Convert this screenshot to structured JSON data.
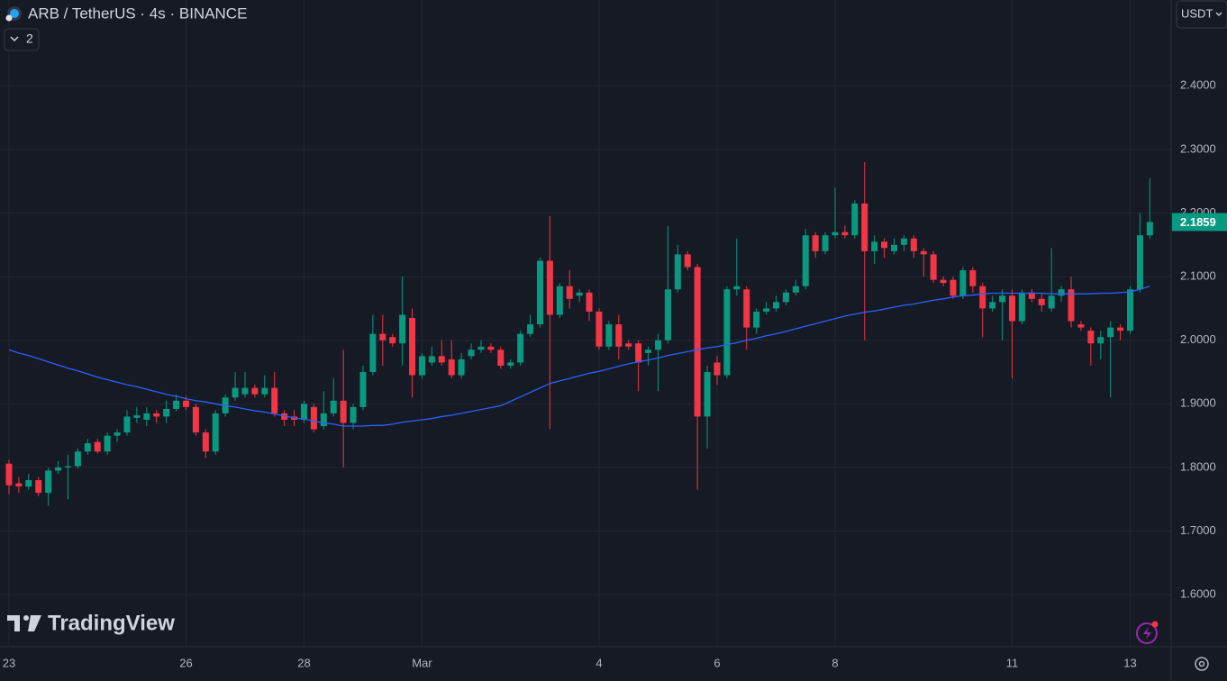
{
  "chart_data": {
    "type": "candlestick",
    "title": "ARB / TetherUS · 4s · BINANCE",
    "indicator_count": "2",
    "currency": "USDT",
    "brand": "TradingView",
    "up_color": "#089981",
    "down_color": "#f23645",
    "grid": true,
    "ylim": [
      1.518,
      2.535
    ],
    "yticks": [
      {
        "value": 1.6,
        "label": "1.6000"
      },
      {
        "value": 1.7,
        "label": "1.7000"
      },
      {
        "value": 1.8,
        "label": "1.8000"
      },
      {
        "value": 1.9,
        "label": "1.9000"
      },
      {
        "value": 2.0,
        "label": "2.0000"
      },
      {
        "value": 2.1,
        "label": "2.1000"
      },
      {
        "value": 2.2,
        "label": "2.2000"
      },
      {
        "value": 2.3,
        "label": "2.3000"
      },
      {
        "value": 2.4,
        "label": "2.4000"
      }
    ],
    "categories": [
      "23",
      null,
      null,
      null,
      null,
      null,
      null,
      null,
      null,
      null,
      null,
      null,
      null,
      null,
      null,
      null,
      null,
      null,
      "26",
      null,
      null,
      null,
      null,
      null,
      null,
      null,
      null,
      null,
      null,
      null,
      "28",
      null,
      null,
      null,
      null,
      null,
      null,
      null,
      null,
      null,
      null,
      null,
      "Mar",
      null,
      null,
      null,
      null,
      null,
      null,
      null,
      null,
      null,
      null,
      null,
      null,
      null,
      null,
      null,
      null,
      null,
      "4",
      null,
      null,
      null,
      null,
      null,
      null,
      null,
      null,
      null,
      null,
      null,
      "6",
      null,
      null,
      null,
      null,
      null,
      null,
      null,
      null,
      null,
      null,
      null,
      "8",
      null,
      null,
      null,
      null,
      null,
      null,
      null,
      null,
      null,
      null,
      null,
      null,
      null,
      null,
      null,
      null,
      null,
      "11",
      null,
      null,
      null,
      null,
      null,
      null,
      null,
      null,
      null,
      null,
      null,
      "13",
      null,
      null
    ],
    "open": [
      1.806,
      1.775,
      1.77,
      1.78,
      1.76,
      1.795,
      1.8,
      1.802,
      1.825,
      1.84,
      1.825,
      1.85,
      1.855,
      1.878,
      1.875,
      1.885,
      1.88,
      1.892,
      1.905,
      1.895,
      1.855,
      1.825,
      1.885,
      1.91,
      1.915,
      1.925,
      1.915,
      1.925,
      1.885,
      1.88,
      1.875,
      1.895,
      1.865,
      1.885,
      1.905,
      1.87,
      1.895,
      1.95,
      2.01,
      2.005,
      1.995,
      2.035,
      1.945,
      1.965,
      1.975,
      1.97,
      1.945,
      1.975,
      1.985,
      1.99,
      1.985,
      1.96,
      1.965,
      2.01,
      2.025,
      2.125,
      2.04,
      2.085,
      2.07,
      2.075,
      2.045,
      1.99,
      2.025,
      1.995,
      1.995,
      1.98,
      1.985,
      2.0,
      2.08,
      2.135,
      2.115,
      1.88,
      1.965,
      1.945,
      2.08,
      2.08,
      2.02,
      2.045,
      2.05,
      2.06,
      2.075,
      2.085,
      2.165,
      2.14,
      2.165,
      2.17,
      2.165,
      2.215,
      2.14,
      2.155,
      2.14,
      2.15,
      2.16,
      2.14,
      2.135,
      2.095,
      2.095,
      2.07,
      2.11,
      2.085,
      2.05,
      2.06,
      2.07,
      2.03,
      2.075,
      2.065,
      2.05,
      2.07,
      2.08,
      2.025,
      2.015,
      1.995,
      2.005,
      2.02,
      2.015,
      2.08,
      2.165
    ],
    "high": [
      1.812,
      1.785,
      1.79,
      1.785,
      1.8,
      1.81,
      1.82,
      1.83,
      1.845,
      1.845,
      1.855,
      1.86,
      1.89,
      1.895,
      1.895,
      1.89,
      1.905,
      1.915,
      1.912,
      1.9,
      1.86,
      1.89,
      1.915,
      1.95,
      1.95,
      1.93,
      1.945,
      1.95,
      1.89,
      1.89,
      1.905,
      1.9,
      1.92,
      1.94,
      1.985,
      1.9,
      1.96,
      2.04,
      2.04,
      2.01,
      2.1,
      2.05,
      1.98,
      1.99,
      2.0,
      2.0,
      1.98,
      1.995,
      2.0,
      1.995,
      1.99,
      1.97,
      2.015,
      2.04,
      2.13,
      2.195,
      2.09,
      2.11,
      2.08,
      2.08,
      2.05,
      2.03,
      2.04,
      2.0,
      2.0,
      1.99,
      2.01,
      2.18,
      2.15,
      2.14,
      2.12,
      1.96,
      1.975,
      2.085,
      2.16,
      2.085,
      2.05,
      2.06,
      2.07,
      2.08,
      2.095,
      2.175,
      2.17,
      2.17,
      2.24,
      2.18,
      2.22,
      2.28,
      2.165,
      2.16,
      2.16,
      2.165,
      2.165,
      2.145,
      2.14,
      2.1,
      2.1,
      2.115,
      2.115,
      2.09,
      2.07,
      2.08,
      2.08,
      2.08,
      2.08,
      2.075,
      2.145,
      2.085,
      2.1,
      2.03,
      2.02,
      2.015,
      2.03,
      2.025,
      2.085,
      2.2,
      2.255
    ],
    "low": [
      1.758,
      1.76,
      1.765,
      1.755,
      1.74,
      1.79,
      1.75,
      1.798,
      1.82,
      1.822,
      1.82,
      1.84,
      1.85,
      1.87,
      1.865,
      1.87,
      1.87,
      1.888,
      1.89,
      1.85,
      1.815,
      1.82,
      1.88,
      1.905,
      1.91,
      1.91,
      1.91,
      1.88,
      1.865,
      1.865,
      1.87,
      1.855,
      1.86,
      1.88,
      1.8,
      1.86,
      1.89,
      1.945,
      1.96,
      1.99,
      1.96,
      1.91,
      1.94,
      1.96,
      1.96,
      1.94,
      1.94,
      1.97,
      1.98,
      1.98,
      1.955,
      1.955,
      1.96,
      2.005,
      2.02,
      1.86,
      2.035,
      2.05,
      2.06,
      2.03,
      1.985,
      1.985,
      1.97,
      1.985,
      1.92,
      1.96,
      1.92,
      1.995,
      2.075,
      2.11,
      1.765,
      1.83,
      1.93,
      1.94,
      2.07,
      1.985,
      2.01,
      2.04,
      2.045,
      2.055,
      2.07,
      2.08,
      2.13,
      2.135,
      2.16,
      2.16,
      2.16,
      2.0,
      2.12,
      2.13,
      2.135,
      2.14,
      2.13,
      2.1,
      2.09,
      2.085,
      2.065,
      2.065,
      2.075,
      2.005,
      2.045,
      2.0,
      1.94,
      2.025,
      2.06,
      2.045,
      2.045,
      2.06,
      2.02,
      2.015,
      1.96,
      1.97,
      1.91,
      2.0,
      2.01,
      2.075,
      2.16
    ],
    "close": [
      1.772,
      1.77,
      1.78,
      1.76,
      1.795,
      1.8,
      1.802,
      1.825,
      1.838,
      1.825,
      1.85,
      1.855,
      1.88,
      1.882,
      1.885,
      1.88,
      1.892,
      1.905,
      1.895,
      1.855,
      1.825,
      1.885,
      1.91,
      1.925,
      1.925,
      1.915,
      1.925,
      1.885,
      1.875,
      1.875,
      1.9,
      1.86,
      1.885,
      1.905,
      1.87,
      1.895,
      1.95,
      2.01,
      2.0,
      1.995,
      2.04,
      1.945,
      1.975,
      1.975,
      1.965,
      1.945,
      1.97,
      1.985,
      1.99,
      1.985,
      1.96,
      1.965,
      2.01,
      2.025,
      2.125,
      2.04,
      2.085,
      2.065,
      2.075,
      2.045,
      1.99,
      2.025,
      1.99,
      1.99,
      1.965,
      1.985,
      2.0,
      2.08,
      2.135,
      2.115,
      1.88,
      1.95,
      1.945,
      2.08,
      2.085,
      2.02,
      2.045,
      2.05,
      2.06,
      2.075,
      2.085,
      2.165,
      2.14,
      2.165,
      2.17,
      2.165,
      2.215,
      2.14,
      2.155,
      2.145,
      2.15,
      2.16,
      2.14,
      2.135,
      2.095,
      2.09,
      2.07,
      2.11,
      2.085,
      2.05,
      2.06,
      2.07,
      2.03,
      2.075,
      2.065,
      2.055,
      2.07,
      2.08,
      2.03,
      2.02,
      1.995,
      2.005,
      2.02,
      2.015,
      2.08,
      2.165,
      2.1859
    ],
    "ma": {
      "color": "#2962ff",
      "values": [
        1.985,
        1.98,
        1.976,
        1.971,
        1.966,
        1.961,
        1.956,
        1.952,
        1.947,
        1.942,
        1.938,
        1.934,
        1.93,
        1.927,
        1.923,
        1.919,
        1.915,
        1.912,
        1.908,
        1.905,
        1.903,
        1.9,
        1.897,
        1.895,
        1.892,
        1.889,
        1.887,
        1.884,
        1.881,
        1.878,
        1.876,
        1.873,
        1.87,
        1.868,
        1.865,
        1.865,
        1.865,
        1.866,
        1.866,
        1.868,
        1.871,
        1.873,
        1.875,
        1.877,
        1.88,
        1.882,
        1.885,
        1.888,
        1.891,
        1.894,
        1.897,
        1.904,
        1.911,
        1.918,
        1.925,
        1.932,
        1.936,
        1.94,
        1.944,
        1.948,
        1.951,
        1.955,
        1.959,
        1.963,
        1.966,
        1.969,
        1.972,
        1.976,
        1.979,
        1.982,
        1.985,
        1.988,
        1.99,
        1.993,
        1.996,
        2.0,
        2.003,
        2.007,
        2.01,
        2.014,
        2.018,
        2.022,
        2.026,
        2.03,
        2.034,
        2.038,
        2.041,
        2.044,
        2.046,
        2.049,
        2.052,
        2.055,
        2.057,
        2.06,
        2.063,
        2.065,
        2.068,
        2.07,
        2.071,
        2.073,
        2.074,
        2.074,
        2.074,
        2.074,
        2.074,
        2.074,
        2.073,
        2.073,
        2.073,
        2.073,
        2.073,
        2.074,
        2.074,
        2.075,
        2.076,
        2.08,
        2.085
      ]
    }
  }
}
